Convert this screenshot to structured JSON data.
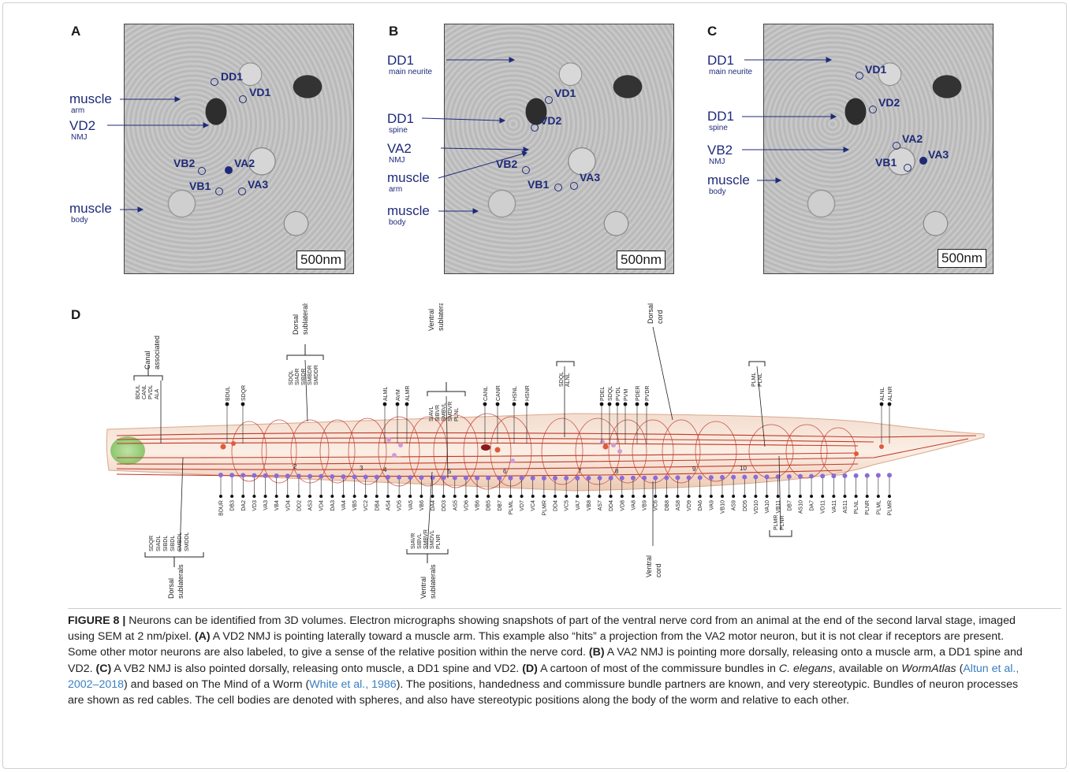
{
  "panels": [
    {
      "letter": "A",
      "structure_labels": [
        {
          "text": "muscle",
          "sub": "arm"
        },
        {
          "text": "VD2",
          "sub": "NMJ"
        },
        {
          "text": "muscle",
          "sub": "body"
        }
      ],
      "neurons": [
        "DD1",
        "VD1",
        "VB2",
        "VA2",
        "VB1",
        "VA3"
      ],
      "scalebar": "500nm"
    },
    {
      "letter": "B",
      "structure_labels": [
        {
          "text": "DD1",
          "sub": "main neurite"
        },
        {
          "text": "DD1",
          "sub": "spine"
        },
        {
          "text": "VA2",
          "sub": "NMJ"
        },
        {
          "text": "muscle",
          "sub": "arm"
        },
        {
          "text": "muscle",
          "sub": "body"
        }
      ],
      "neurons": [
        "VD1",
        "VD2",
        "VB2",
        "VB1",
        "VA3"
      ],
      "scalebar": "500nm"
    },
    {
      "letter": "C",
      "structure_labels": [
        {
          "text": "DD1",
          "sub": "main neurite"
        },
        {
          "text": "DD1",
          "sub": "spine"
        },
        {
          "text": "VB2",
          "sub": "NMJ"
        },
        {
          "text": "muscle",
          "sub": "body"
        }
      ],
      "neurons": [
        "VD1",
        "VD2",
        "VA2",
        "VB1",
        "VA3"
      ],
      "scalebar": "500nm"
    }
  ],
  "panel_d": {
    "letter": "D",
    "groups": {
      "canal_associated": {
        "title": [
          "Canal",
          "associated"
        ],
        "members": [
          "BDUL",
          "CANL",
          "PVDL",
          "ALA"
        ]
      },
      "dorsal_sublaterals_top": {
        "title": [
          "Dorsal",
          "sublaterals"
        ],
        "members": [
          "SDQL",
          "SIADR",
          "SIBDR",
          "SMBDR",
          "SMDDR"
        ]
      },
      "ventral_sublaterals_top": {
        "title": [
          "Ventral",
          "sublaterals"
        ],
        "members": [
          "SIAVL",
          "SIBVR",
          "SMBVL",
          "SMDVR",
          "PLNL"
        ]
      },
      "dorsal_cord": {
        "title": [
          "Dorsal",
          "cord"
        ]
      },
      "sdql_alnl": [
        "SDQL",
        "ALNL"
      ],
      "plml_plnl": [
        "PLML",
        "PLNL"
      ],
      "dorsal_sublaterals_bottom": {
        "title": [
          "Dorsal",
          "sublaterals"
        ],
        "members": [
          "SDQR",
          "SIADL",
          "SIBDL",
          "SIBDL",
          "SMBDL",
          "SMDDL"
        ]
      },
      "ventral_sublaterals_bottom": {
        "title": [
          "Ventral",
          "sublaterals"
        ],
        "members": [
          "SIAVR",
          "SIBVL",
          "SMBVR",
          "SMDVL",
          "PLNR"
        ]
      },
      "ventral_cord": {
        "title": [
          "Ventral",
          "cord"
        ]
      },
      "plmr_plnr": [
        "PLMR",
        "PLNR"
      ]
    },
    "top_neurons": [
      "BDUL",
      "SDQR",
      "ALML",
      "AVM",
      "ALMR",
      "CANL",
      "CANR",
      "HSNL",
      "HSNR",
      "PDEL",
      "SDQL",
      "PVDL",
      "PVM",
      "PDER",
      "PVDR",
      "ALNL",
      "ALNR"
    ],
    "bottom_neurons": [
      "BDUR",
      "DB3",
      "DA2",
      "VD3",
      "VA3",
      "VB4",
      "VD4",
      "DD2",
      "AS3",
      "VD4",
      "DA3",
      "VA4",
      "VB5",
      "VC2",
      "DB4",
      "AS4",
      "VD5",
      "VA5",
      "VB6",
      "DA4",
      "DD3",
      "AS5",
      "VD6",
      "VB6",
      "DB5",
      "DB7",
      "PLML",
      "VD7",
      "VC4",
      "PLMR",
      "DD4",
      "VC5",
      "VA7",
      "VB8",
      "AS7",
      "DD4",
      "VD8",
      "VA8",
      "VB9",
      "VC6",
      "DB8",
      "AS8",
      "VD9",
      "DA6",
      "VA9",
      "VB10",
      "AS9",
      "DD5",
      "VD10",
      "VA10",
      "VB11",
      "DB7",
      "AS10",
      "DA7",
      "VD11",
      "VA11",
      "AS11",
      "PLNL",
      "PLNR",
      "PLML",
      "PLMR"
    ],
    "commissure_numbers": [
      "2",
      "3",
      "4",
      "5",
      "6",
      "7",
      "8",
      "9",
      "10"
    ]
  },
  "caption": {
    "figure_label": "FIGURE 8 |",
    "intro": " Neurons can be identified from 3D volumes. Electron micrographs showing snapshots of part of the ventral nerve cord from an animal at the end of the second larval stage, imaged using SEM at 2 nm/pixel. ",
    "a_label": "(A)",
    "a_text": " A VD2 NMJ is pointing laterally toward a muscle arm. This example also “hits” a projection from the VA2 motor neuron, but it is not clear if receptors are present. Some other motor neurons are also labeled, to give a sense of the relative position within the nerve cord. ",
    "b_label": "(B)",
    "b_text": " A VA2 NMJ is pointing more dorsally, releasing onto a muscle arm, a DD1 spine and VD2. ",
    "c_label": "(C)",
    "c_text": " A VB2 NMJ is also pointed dorsally, releasing onto muscle, a DD1 spine and VD2. ",
    "d_label": "(D)",
    "d_text_1": " A cartoon of most of the commissure bundles in ",
    "species": "C. elegans",
    "d_text_2": ", available on ",
    "wormatlas": "WormAtlas",
    "d_text_3": " (",
    "cite1": "Altun et al., 2002–2018",
    "d_text_4": ") and based on The Mind of a Worm (",
    "cite2": "White et al., 1986",
    "d_text_5": "). The positions, handedness and commissure bundle partners are known, and very stereotypic. Bundles of neuron processes are shown as red cables. The cell bodies are denoted with spheres, and also have stereotypic positions along the body of the worm and relative to each other."
  },
  "colors": {
    "label_blue": "#1e2a78",
    "cable_red": "#c0392b",
    "citation_blue": "#3a7fc1"
  }
}
